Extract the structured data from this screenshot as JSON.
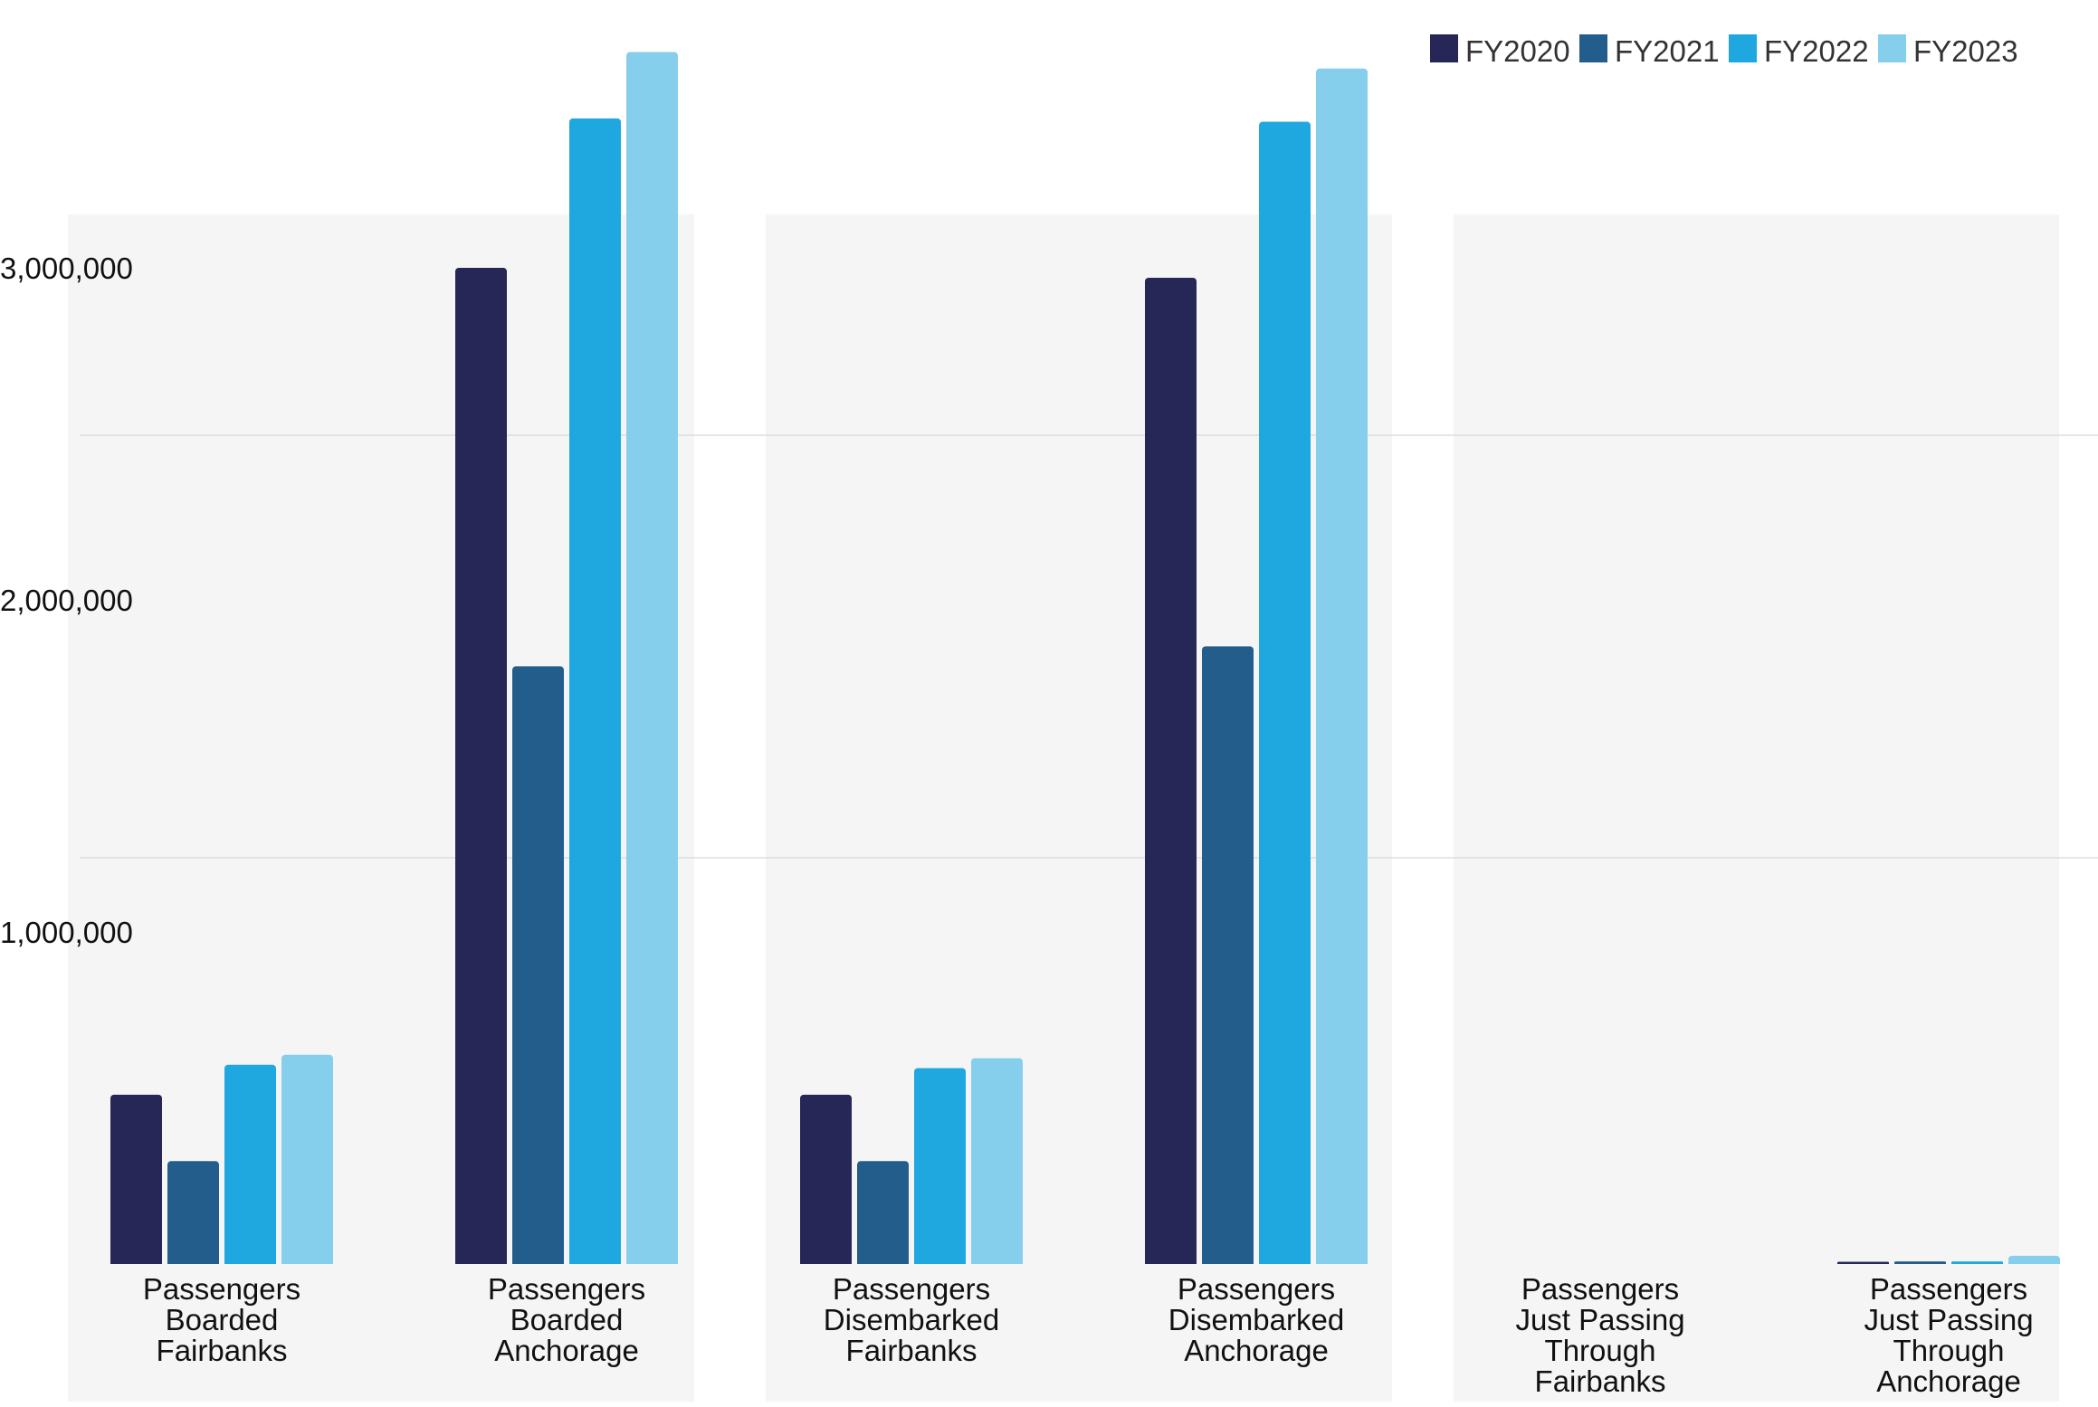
{
  "chart_data": {
    "type": "bar",
    "title": "",
    "xlabel": "",
    "ylabel": "",
    "categories": [
      "Passengers Boarded Fairbanks",
      "Passengers Boarded Anchorage",
      "Passengers Disembarked Fairbanks",
      "Passengers Disembarked Anchorage",
      "Passengers Just Passing Through Fairbanks",
      "Passengers Just Passing Through Anchorage"
    ],
    "category_lines": [
      [
        "Passengers",
        "Boarded",
        "Fairbanks"
      ],
      [
        "Passengers",
        "Boarded",
        "Anchorage"
      ],
      [
        "Passengers",
        "Disembarked",
        "Fairbanks"
      ],
      [
        "Passengers",
        "Disembarked",
        "Anchorage"
      ],
      [
        "Passengers",
        "Just Passing",
        "Through",
        "Fairbanks"
      ],
      [
        "Passengers",
        "Just Passing",
        "Through",
        "Anchorage"
      ]
    ],
    "series": [
      {
        "name": "FY2020",
        "color": "#272757",
        "values": [
          510000,
          3000000,
          510000,
          2970000,
          0,
          2000
        ]
      },
      {
        "name": "FY2021",
        "color": "#235D8C",
        "values": [
          310000,
          1800000,
          310000,
          1860000,
          0,
          8000
        ]
      },
      {
        "name": "FY2022",
        "color": "#1FA8DF",
        "values": [
          600000,
          3450000,
          590000,
          3440000,
          0,
          8000
        ]
      },
      {
        "name": "FY2023",
        "color": "#86CFEC",
        "values": [
          630000,
          3650000,
          620000,
          3600000,
          0,
          25000
        ]
      }
    ],
    "y_ticks": [
      {
        "value": 1000000,
        "label": "1,000,000"
      },
      {
        "value": 2000000,
        "label": "2,000,000"
      },
      {
        "value": 3000000,
        "label": "3,000,000"
      }
    ],
    "ylim": [
      0,
      3700000
    ],
    "grid": true,
    "legend": "top-right"
  }
}
